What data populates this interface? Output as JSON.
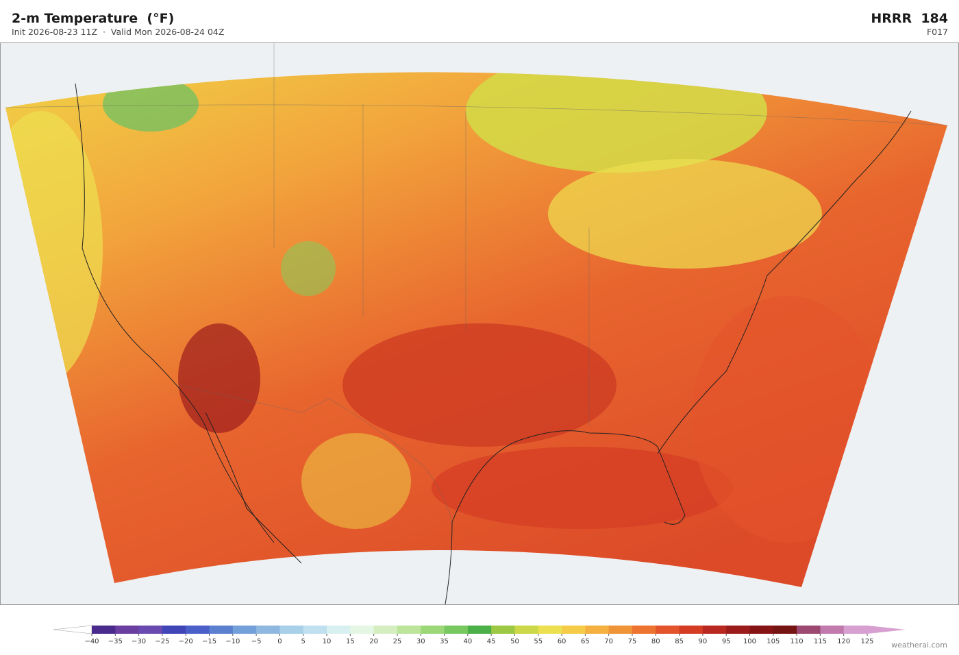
{
  "header": {
    "title": "2-m Temperature  (°F)",
    "subtitle": "Init 2026-08-23 11Z  ·  Valid Mon 2026-08-24 04Z",
    "model": "HRRR  184",
    "forecast_hour": "F017"
  },
  "colorbar": {
    "ticks": [
      {
        "value": -40,
        "label": "−40"
      },
      {
        "value": -35,
        "label": "−35"
      },
      {
        "value": -30,
        "label": "−30"
      },
      {
        "value": -25,
        "label": "−25"
      },
      {
        "value": -20,
        "label": "−20"
      },
      {
        "value": -15,
        "label": "−15"
      },
      {
        "value": -10,
        "label": "−10"
      },
      {
        "value": -5,
        "label": "−5"
      },
      0,
      5,
      10,
      15,
      20,
      25,
      30,
      35,
      40,
      45,
      50,
      55,
      60,
      65,
      70,
      75,
      80,
      85,
      90,
      95,
      100,
      105,
      110,
      115,
      120,
      125
    ],
    "colors": [
      "#4a2a8c",
      "#6a3fa0",
      "#6a4ab0",
      "#4046b8",
      "#4a60c8",
      "#5b80d0",
      "#73a0d8",
      "#8fb8e0",
      "#a8d0e8",
      "#c0e0f0",
      "#d8f0f0",
      "#e4f6e4",
      "#d4eec0",
      "#bce49a",
      "#9cd878",
      "#78c860",
      "#4cb048",
      "#9cc844",
      "#ccd848",
      "#ece050",
      "#f4cc48",
      "#f4b040",
      "#f09438",
      "#ec7430",
      "#e4542c",
      "#d43c24",
      "#b82820",
      "#9c1c1c",
      "#861414",
      "#761414",
      "#9c4870",
      "#c07aac",
      "#d8a0d0"
    ],
    "under_color": "#ffffff",
    "over_color": "#d8a0d0"
  },
  "credit": "weatherai.com"
}
